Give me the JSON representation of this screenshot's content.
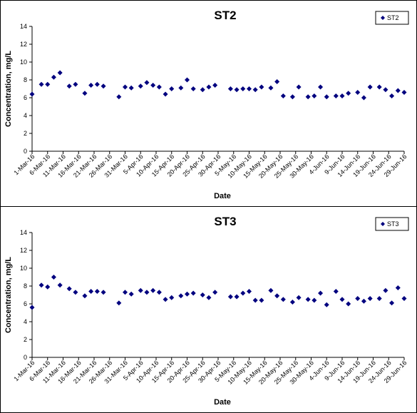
{
  "chart_data": [
    {
      "type": "scatter",
      "title": "ST2",
      "xlabel": "Date",
      "ylabel": "Concentration, mg/L",
      "ylim": [
        0,
        14
      ],
      "yticks": [
        0,
        2,
        4,
        6,
        8,
        10,
        12,
        14
      ],
      "xlim": [
        "1-Mar-16",
        "29-Jun-16"
      ],
      "xticks": [
        "1-Mar-16",
        "6-Mar-16",
        "11-Mar-16",
        "16-Mar-16",
        "21-Mar-16",
        "26-Mar-16",
        "31-Mar-16",
        "5-Apr-16",
        "10-Apr-16",
        "15-Apr-16",
        "20-Apr-16",
        "25-Apr-16",
        "30-Apr-16",
        "5-May-16",
        "10-May-16",
        "15-May-16",
        "20-May-16",
        "25-May-16",
        "30-May-16",
        "4-Jun-16",
        "9-Jun-16",
        "14-Jun-16",
        "19-Jun-16",
        "24-Jun-16",
        "29-Jun-16"
      ],
      "grid": false,
      "legend_position": "top-right",
      "marker": "diamond",
      "color": "#00007f",
      "series": [
        {
          "name": "ST2",
          "points": [
            {
              "x": "1-Mar-16",
              "y": 6.4
            },
            {
              "x": "4-Mar-16",
              "y": 7.5
            },
            {
              "x": "6-Mar-16",
              "y": 7.5
            },
            {
              "x": "8-Mar-16",
              "y": 8.3
            },
            {
              "x": "10-Mar-16",
              "y": 8.8
            },
            {
              "x": "13-Mar-16",
              "y": 7.3
            },
            {
              "x": "15-Mar-16",
              "y": 7.5
            },
            {
              "x": "18-Mar-16",
              "y": 6.5
            },
            {
              "x": "20-Mar-16",
              "y": 7.4
            },
            {
              "x": "22-Mar-16",
              "y": 7.5
            },
            {
              "x": "24-Mar-16",
              "y": 7.3
            },
            {
              "x": "29-Mar-16",
              "y": 6.1
            },
            {
              "x": "31-Mar-16",
              "y": 7.2
            },
            {
              "x": "2-Apr-16",
              "y": 7.1
            },
            {
              "x": "5-Apr-16",
              "y": 7.3
            },
            {
              "x": "7-Apr-16",
              "y": 7.7
            },
            {
              "x": "9-Apr-16",
              "y": 7.4
            },
            {
              "x": "11-Apr-16",
              "y": 7.2
            },
            {
              "x": "13-Apr-16",
              "y": 6.4
            },
            {
              "x": "15-Apr-16",
              "y": 7.0
            },
            {
              "x": "18-Apr-16",
              "y": 7.1
            },
            {
              "x": "20-Apr-16",
              "y": 8.0
            },
            {
              "x": "22-Apr-16",
              "y": 7.0
            },
            {
              "x": "25-Apr-16",
              "y": 6.9
            },
            {
              "x": "27-Apr-16",
              "y": 7.2
            },
            {
              "x": "29-Apr-16",
              "y": 7.4
            },
            {
              "x": "4-May-16",
              "y": 7.0
            },
            {
              "x": "6-May-16",
              "y": 6.9
            },
            {
              "x": "8-May-16",
              "y": 7.0
            },
            {
              "x": "10-May-16",
              "y": 7.0
            },
            {
              "x": "12-May-16",
              "y": 6.9
            },
            {
              "x": "14-May-16",
              "y": 7.2
            },
            {
              "x": "17-May-16",
              "y": 7.1
            },
            {
              "x": "19-May-16",
              "y": 7.8
            },
            {
              "x": "21-May-16",
              "y": 6.2
            },
            {
              "x": "24-May-16",
              "y": 6.1
            },
            {
              "x": "26-May-16",
              "y": 7.2
            },
            {
              "x": "29-May-16",
              "y": 6.1
            },
            {
              "x": "31-May-16",
              "y": 6.2
            },
            {
              "x": "2-Jun-16",
              "y": 7.2
            },
            {
              "x": "4-Jun-16",
              "y": 6.1
            },
            {
              "x": "7-Jun-16",
              "y": 6.2
            },
            {
              "x": "9-Jun-16",
              "y": 6.2
            },
            {
              "x": "11-Jun-16",
              "y": 6.5
            },
            {
              "x": "14-Jun-16",
              "y": 6.6
            },
            {
              "x": "16-Jun-16",
              "y": 6.0
            },
            {
              "x": "18-Jun-16",
              "y": 7.2
            },
            {
              "x": "21-Jun-16",
              "y": 7.2
            },
            {
              "x": "23-Jun-16",
              "y": 6.9
            },
            {
              "x": "25-Jun-16",
              "y": 6.2
            },
            {
              "x": "27-Jun-16",
              "y": 6.8
            },
            {
              "x": "29-Jun-16",
              "y": 6.6
            }
          ]
        }
      ]
    },
    {
      "type": "scatter",
      "title": "ST3",
      "xlabel": "Date",
      "ylabel": "Concentration, mg/L",
      "ylim": [
        0,
        14
      ],
      "yticks": [
        0,
        2,
        4,
        6,
        8,
        10,
        12,
        14
      ],
      "xlim": [
        "1-Mar-16",
        "29-Jun-16"
      ],
      "xticks": [
        "1-Mar-16",
        "6-Mar-16",
        "11-Mar-16",
        "16-Mar-16",
        "21-Mar-16",
        "26-Mar-16",
        "31-Mar-16",
        "5-Apr-16",
        "10-Apr-16",
        "15-Apr-16",
        "20-Apr-16",
        "25-Apr-16",
        "30-Apr-16",
        "5-May-16",
        "10-May-16",
        "15-May-16",
        "20-May-16",
        "25-May-16",
        "30-May-16",
        "4-Jun-16",
        "9-Jun-16",
        "14-Jun-16",
        "19-Jun-16",
        "24-Jun-16",
        "29-Jun-16"
      ],
      "grid": false,
      "legend_position": "top-right",
      "marker": "diamond",
      "color": "#00007f",
      "series": [
        {
          "name": "ST3",
          "points": [
            {
              "x": "1-Mar-16",
              "y": 5.6
            },
            {
              "x": "4-Mar-16",
              "y": 8.1
            },
            {
              "x": "6-Mar-16",
              "y": 7.9
            },
            {
              "x": "8-Mar-16",
              "y": 9.0
            },
            {
              "x": "10-Mar-16",
              "y": 8.1
            },
            {
              "x": "13-Mar-16",
              "y": 7.7
            },
            {
              "x": "15-Mar-16",
              "y": 7.3
            },
            {
              "x": "18-Mar-16",
              "y": 6.9
            },
            {
              "x": "20-Mar-16",
              "y": 7.4
            },
            {
              "x": "22-Mar-16",
              "y": 7.4
            },
            {
              "x": "24-Mar-16",
              "y": 7.3
            },
            {
              "x": "29-Mar-16",
              "y": 6.1
            },
            {
              "x": "31-Mar-16",
              "y": 7.3
            },
            {
              "x": "2-Apr-16",
              "y": 7.1
            },
            {
              "x": "5-Apr-16",
              "y": 7.5
            },
            {
              "x": "7-Apr-16",
              "y": 7.3
            },
            {
              "x": "9-Apr-16",
              "y": 7.5
            },
            {
              "x": "11-Apr-16",
              "y": 7.3
            },
            {
              "x": "13-Apr-16",
              "y": 6.5
            },
            {
              "x": "15-Apr-16",
              "y": 6.7
            },
            {
              "x": "18-Apr-16",
              "y": 6.9
            },
            {
              "x": "20-Apr-16",
              "y": 7.1
            },
            {
              "x": "22-Apr-16",
              "y": 7.2
            },
            {
              "x": "25-Apr-16",
              "y": 7.0
            },
            {
              "x": "27-Apr-16",
              "y": 6.7
            },
            {
              "x": "29-Apr-16",
              "y": 7.3
            },
            {
              "x": "4-May-16",
              "y": 6.8
            },
            {
              "x": "6-May-16",
              "y": 6.8
            },
            {
              "x": "8-May-16",
              "y": 7.2
            },
            {
              "x": "10-May-16",
              "y": 7.4
            },
            {
              "x": "12-May-16",
              "y": 6.4
            },
            {
              "x": "14-May-16",
              "y": 6.4
            },
            {
              "x": "17-May-16",
              "y": 7.5
            },
            {
              "x": "19-May-16",
              "y": 6.9
            },
            {
              "x": "21-May-16",
              "y": 6.5
            },
            {
              "x": "24-May-16",
              "y": 6.2
            },
            {
              "x": "26-May-16",
              "y": 6.7
            },
            {
              "x": "29-May-16",
              "y": 6.5
            },
            {
              "x": "31-May-16",
              "y": 6.4
            },
            {
              "x": "2-Jun-16",
              "y": 7.2
            },
            {
              "x": "4-Jun-16",
              "y": 5.9
            },
            {
              "x": "7-Jun-16",
              "y": 7.4
            },
            {
              "x": "9-Jun-16",
              "y": 6.5
            },
            {
              "x": "11-Jun-16",
              "y": 6.0
            },
            {
              "x": "14-Jun-16",
              "y": 6.6
            },
            {
              "x": "16-Jun-16",
              "y": 6.3
            },
            {
              "x": "18-Jun-16",
              "y": 6.6
            },
            {
              "x": "21-Jun-16",
              "y": 6.6
            },
            {
              "x": "23-Jun-16",
              "y": 7.5
            },
            {
              "x": "25-Jun-16",
              "y": 6.1
            },
            {
              "x": "27-Jun-16",
              "y": 7.8
            },
            {
              "x": "29-Jun-16",
              "y": 6.6
            }
          ]
        }
      ]
    }
  ]
}
